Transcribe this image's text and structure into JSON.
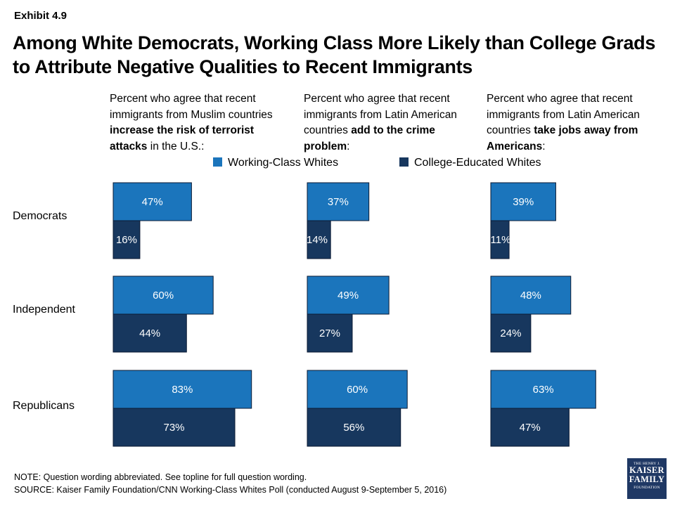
{
  "exhibit": "Exhibit 4.9",
  "title": "Among White Democrats, Working Class More Likely than College Grads to Attribute Negative Qualities to Recent Immigrants",
  "columns": [
    {
      "pre": "Percent who agree that recent immigrants from Muslim countries ",
      "bold": "increase the risk of terrorist attacks",
      "post": " in the U.S.:"
    },
    {
      "pre": "Percent who agree that recent immigrants from Latin American countries ",
      "bold": "add to the crime problem",
      "post": ":"
    },
    {
      "pre": "Percent who agree that recent immigrants from Latin American countries ",
      "bold": "take jobs away from Americans",
      "post": ":"
    }
  ],
  "legend": [
    "Working-Class Whites",
    "College-Educated Whites"
  ],
  "colors": {
    "working": "#1b75bc",
    "college": "#17375e",
    "border": "#0b1a33"
  },
  "chart_data": {
    "type": "bar",
    "orientation": "horizontal",
    "categories": [
      "Democrats",
      "Independent",
      "Republicans"
    ],
    "panels": [
      {
        "series": [
          {
            "name": "Working-Class Whites",
            "values": [
              47,
              60,
              83
            ]
          },
          {
            "name": "College-Educated Whites",
            "values": [
              16,
              44,
              73
            ]
          }
        ]
      },
      {
        "series": [
          {
            "name": "Working-Class Whites",
            "values": [
              37,
              49,
              60
            ]
          },
          {
            "name": "College-Educated Whites",
            "values": [
              14,
              27,
              56
            ]
          }
        ]
      },
      {
        "series": [
          {
            "name": "Working-Class Whites",
            "values": [
              39,
              48,
              63
            ]
          },
          {
            "name": "College-Educated Whites",
            "values": [
              11,
              24,
              47
            ]
          }
        ]
      }
    ],
    "value_suffix": "%",
    "xlim": [
      0,
      100
    ],
    "grid": false,
    "legend_position": "top"
  },
  "footer": {
    "note": "NOTE: Question wording abbreviated. See topline for full question wording.",
    "source": "SOURCE: Kaiser Family Foundation/CNN Working-Class Whites Poll (conducted August 9-September 5, 2016)"
  },
  "logo": {
    "line1": "THE HENRY J.",
    "line2a": "KAISER",
    "line2b": "FAMILY",
    "line3": "FOUNDATION"
  }
}
